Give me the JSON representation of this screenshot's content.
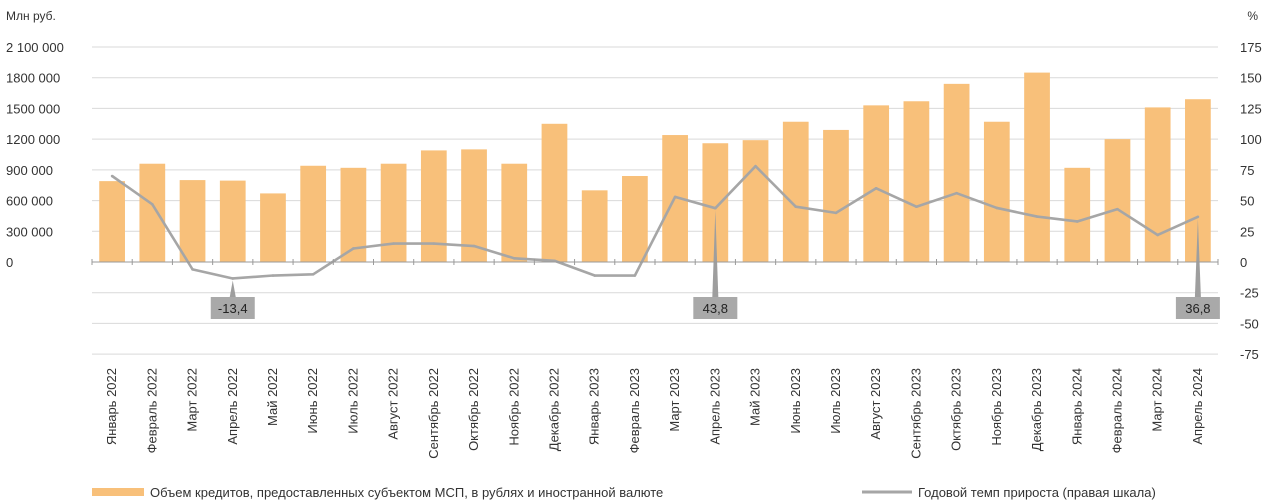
{
  "chart_data": {
    "type": "bar",
    "left_unit": "Млн руб.",
    "right_unit": "%",
    "categories": [
      "Январь 2022",
      "Февраль 2022",
      "Март 2022",
      "Апрель 2022",
      "Май 2022",
      "Июнь 2022",
      "Июль 2022",
      "Август 2022",
      "Сентябрь 2022",
      "Октябрь 2022",
      "Ноябрь 2022",
      "Декабрь 2022",
      "Январь 2023",
      "Февраль 2023",
      "Март 2023",
      "Апрель 2023",
      "Май 2023",
      "Июнь 2023",
      "Июль 2023",
      "Август 2023",
      "Сентябрь 2023",
      "Октябрь 2023",
      "Ноябрь 2023",
      "Декабрь 2023",
      "Январь 2024",
      "Февраль 2024",
      "Март 2024",
      "Апрель 2024"
    ],
    "left_axis": {
      "range": [
        0,
        2100000
      ],
      "ticks": [
        0,
        300000,
        600000,
        900000,
        1200000,
        1500000,
        1800000,
        2100000
      ],
      "tick_labels": [
        "0",
        "300 000",
        "600 000",
        "900 000",
        "1200 000",
        "1500 000",
        "1800 000",
        "2 100 000"
      ]
    },
    "right_axis": {
      "range": [
        -75,
        175
      ],
      "ticks": [
        -75,
        -50,
        -25,
        0,
        25,
        50,
        75,
        100,
        125,
        150,
        175
      ],
      "tick_labels": [
        "-75",
        "-50",
        "-25",
        "0",
        "25",
        "50",
        "75",
        "100",
        "125",
        "150",
        "175"
      ]
    },
    "grid": true,
    "legend_position": "bottom",
    "series": [
      {
        "name": "Объем кредитов, предоставленных субъектом МСП, в рублях и иностранной валюте",
        "type": "bar",
        "axis": "left",
        "color": "#F8C07A",
        "values": [
          790000,
          960000,
          800000,
          795000,
          670000,
          940000,
          920000,
          960000,
          1090000,
          1100000,
          960000,
          1350000,
          700000,
          840000,
          1240000,
          1160000,
          1190000,
          1370000,
          1290000,
          1530000,
          1570000,
          1740000,
          1370000,
          1850000,
          920000,
          1200000,
          1510000,
          1590000
        ]
      },
      {
        "name": "Годовой темп прироста (правая шкала)",
        "type": "line",
        "axis": "right",
        "color": "#A6A6A6",
        "values": [
          70,
          47,
          -6,
          -13.4,
          -11,
          -10,
          11,
          15,
          15,
          13,
          3,
          1,
          -11,
          -11,
          53,
          43.8,
          78,
          45,
          40,
          60,
          45,
          56,
          44,
          37,
          33,
          43,
          22,
          36.8
        ]
      }
    ],
    "annotations": [
      {
        "index": 3,
        "label": "-13,4"
      },
      {
        "index": 15,
        "label": "43,8"
      },
      {
        "index": 27,
        "label": "36,8"
      }
    ]
  }
}
